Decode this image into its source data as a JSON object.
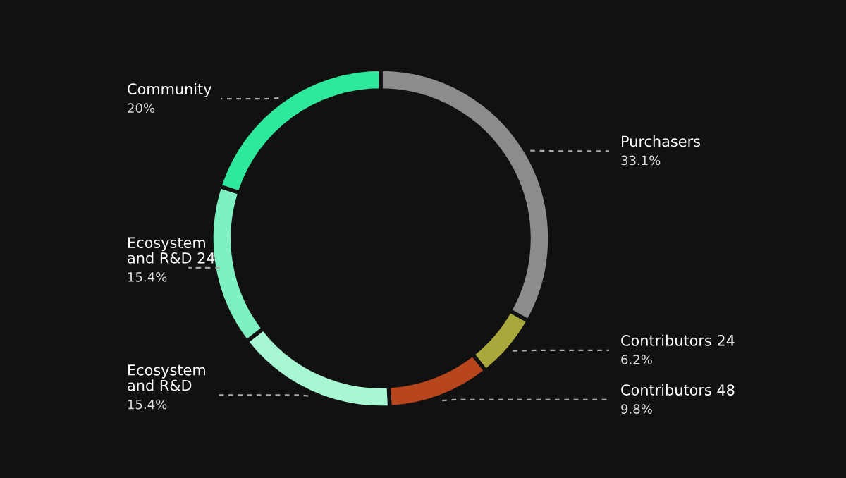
{
  "chart_data": {
    "type": "donut",
    "categories": [
      "Purchasers",
      "Contributors 24",
      "Contributors 48",
      "Ecosystem\nand R&D",
      "Ecosystem\nand R&D 24",
      "Community"
    ],
    "values": [
      33.1,
      6.2,
      9.8,
      15.4,
      15.4,
      20
    ],
    "value_labels": [
      "33.1%",
      "6.2%",
      "9.8%",
      "15.4%",
      "15.4%",
      "20%"
    ],
    "colors": [
      "#8c8c8c",
      "#a8a83c",
      "#b8461c",
      "#a6f7d2",
      "#7ff0c2",
      "#2ee89c"
    ],
    "legend": false
  }
}
